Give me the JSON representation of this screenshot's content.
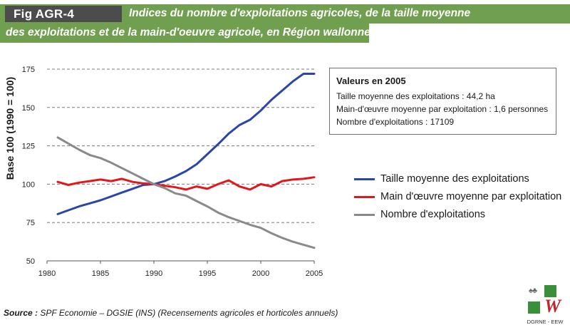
{
  "header": {
    "fig_label": "Fig AGR-4",
    "title_line1": "Indices du nombre d'exploitations agricoles, de la taille moyenne",
    "title_line2": "des exploitations et de la main-d'oeuvre agricole, en Région wallonne"
  },
  "info_box": {
    "heading": "Valeurs en 2005",
    "lines": [
      "Taille moyenne des exploitations : 44,2 ha",
      "Main-d'œuvre moyenne par exploitation : 1,6 personnes",
      "Nombre d'exploitations : 17109"
    ]
  },
  "footer": {
    "source_label": "Source :",
    "source_text": "SPF Economie – DGSIE (INS) (Recensements agricoles et horticoles annuels)",
    "logo_caption": "DGRNE - EEW"
  },
  "colors": {
    "banner": "#6f9f4f",
    "fig_tag": "#4c4c4c",
    "taille": "#2b47a5",
    "main_oeuvre": "#e3171b",
    "nombre": "#8a8a8a"
  },
  "chart_data": {
    "type": "line",
    "title": "Indices du nombre d'exploitations agricoles, de la taille moyenne des exploitations et de la main-d'oeuvre agricole, en Région wallonne",
    "xlabel": "",
    "ylabel": "Base 100 (1990 = 100)",
    "xlim": [
      1980,
      2005
    ],
    "ylim": [
      50,
      175
    ],
    "x_ticks": [
      1980,
      1985,
      1990,
      1995,
      2000,
      2005
    ],
    "y_ticks": [
      50,
      75,
      100,
      125,
      150,
      175
    ],
    "grid": "horizontal dashed",
    "legend_position": "right",
    "x": [
      1981,
      1982,
      1983,
      1984,
      1985,
      1986,
      1987,
      1988,
      1989,
      1990,
      1991,
      1992,
      1993,
      1994,
      1995,
      1996,
      1997,
      1998,
      1999,
      2000,
      2001,
      2002,
      2003,
      2004,
      2005
    ],
    "series": [
      {
        "name": "Taille moyenne des exploitations",
        "color": "#2b47a5",
        "values": [
          80.5,
          83,
          85.5,
          87.5,
          89.5,
          92,
          94.5,
          97,
          99.5,
          100,
          102,
          105,
          108.5,
          113,
          119.5,
          126,
          133,
          138.5,
          142,
          148,
          155,
          161,
          167,
          172,
          172
        ]
      },
      {
        "name": "Main d'œuvre moyenne par exploitation",
        "color": "#e3171b",
        "values": [
          101.5,
          99.5,
          101,
          102,
          103,
          102,
          103.5,
          101.5,
          100.5,
          100,
          99,
          98,
          96.5,
          98.5,
          97,
          100,
          102.5,
          98.5,
          96.5,
          100,
          98.5,
          102,
          103,
          103.5,
          104.5
        ]
      },
      {
        "name": "Nombre d'exploitations",
        "color": "#8a8a8a",
        "values": [
          130.5,
          126.5,
          122.5,
          119,
          117,
          114,
          110.5,
          107,
          103.5,
          100,
          97.5,
          94,
          92.5,
          89,
          85.5,
          81.5,
          78.5,
          76,
          73.5,
          71.5,
          68,
          65,
          62.5,
          60.5,
          58.5
        ]
      }
    ]
  }
}
